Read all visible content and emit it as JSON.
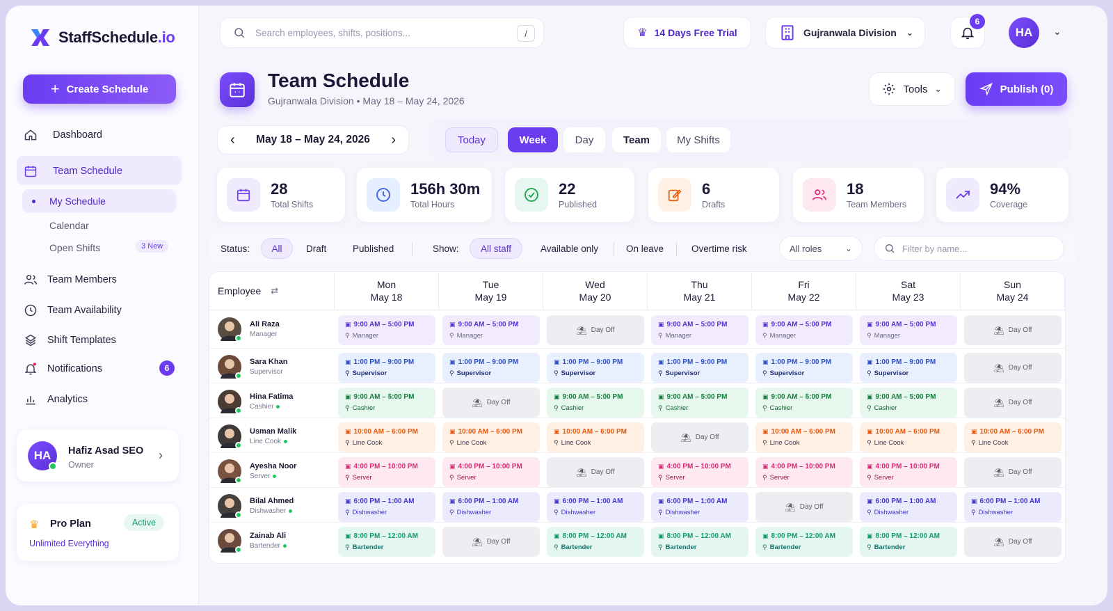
{
  "app": {
    "logo_text": "StaffSchedule",
    "logo_tld": ".io",
    "brand_color": "#6c3cf0"
  },
  "sidebar": {
    "create_label": "Create Schedule",
    "nav": {
      "dashboard": "Dashboard",
      "team_schedule": "Team Schedule",
      "my_schedule": "My Schedule",
      "calendar": "Calendar",
      "open_shifts": "Open Shifts",
      "open_shifts_badge": "3 New",
      "team_members": "Team Members",
      "team_availability": "Team Availability",
      "shift_templates": "Shift Templates",
      "notifications": "Notifications",
      "notifications_count": "6",
      "analytics": "Analytics"
    },
    "user": {
      "initials": "HA",
      "name": "Hafiz Asad SEO",
      "role": "Owner"
    },
    "plan": {
      "name": "Pro Plan",
      "status": "Active",
      "desc": "Unlimited Everything"
    }
  },
  "topbar": {
    "search_placeholder": "Search employees, shifts, positions...",
    "search_shortcut": "/",
    "trial": "14 Days Free Trial",
    "division": "Gujranwala Division",
    "bell_count": "6",
    "avatar_initials": "HA"
  },
  "header": {
    "title": "Team Schedule",
    "subtitle": "Gujranwala Division • May 18 – May 24, 2026",
    "tools": "Tools",
    "publish": "Publish (0)"
  },
  "range": {
    "label": "May 18 – May 24, 2026"
  },
  "views": {
    "today": "Today",
    "week": "Week",
    "day": "Day",
    "team": "Team",
    "my_shifts": "My Shifts"
  },
  "stats": [
    {
      "value": "28",
      "label": "Total Shifts"
    },
    {
      "value": "156h 30m",
      "label": "Total Hours"
    },
    {
      "value": "22",
      "label": "Published"
    },
    {
      "value": "6",
      "label": "Drafts"
    },
    {
      "value": "18",
      "label": "Team Members"
    },
    {
      "value": "94%",
      "label": "Coverage"
    }
  ],
  "filters": {
    "status_label": "Status:",
    "status_all": "All",
    "status_draft": "Draft",
    "status_published": "Published",
    "show_label": "Show:",
    "show_all": "All staff",
    "show_available": "Available only",
    "show_leave": "On leave",
    "show_overtime": "Overtime risk",
    "roles": "All roles",
    "name_placeholder": "Filter by name..."
  },
  "grid": {
    "employee_header": "Employee",
    "days": [
      {
        "day": "Mon",
        "date": "May 18"
      },
      {
        "day": "Tue",
        "date": "May 19"
      },
      {
        "day": "Wed",
        "date": "May 20"
      },
      {
        "day": "Thu",
        "date": "May 21"
      },
      {
        "day": "Fri",
        "date": "May 22"
      },
      {
        "day": "Sat",
        "date": "May 23"
      },
      {
        "day": "Sun",
        "date": "May 24"
      }
    ],
    "day_off_label": "Day Off",
    "employees": [
      {
        "name": "Ali Raza",
        "role": "Manager",
        "time": "9:00 AM – 5:00 PM",
        "color": "manager",
        "off": [
          2,
          6
        ]
      },
      {
        "name": "Sara Khan",
        "role": "Supervisor",
        "time": "1:00 PM – 9:00 PM",
        "color": "supervisor",
        "off": [
          6
        ]
      },
      {
        "name": "Hina Fatima",
        "role": "Cashier",
        "time": "9:00 AM – 5:00 PM",
        "color": "cashier",
        "off": [
          1,
          6
        ]
      },
      {
        "name": "Usman Malik",
        "role": "Line Cook",
        "time": "10:00 AM – 6:00 PM",
        "color": "cook",
        "off": [
          3
        ]
      },
      {
        "name": "Ayesha Noor",
        "role": "Server",
        "time": "4:00 PM – 10:00 PM",
        "color": "server",
        "off": [
          2,
          6
        ]
      },
      {
        "name": "Bilal Ahmed",
        "role": "Dishwasher",
        "time": "6:00 PM – 1:00 AM",
        "color": "dish",
        "off": [
          4
        ]
      },
      {
        "name": "Zainab Ali",
        "role": "Bartender",
        "time": "8:00 PM – 12:00 AM",
        "color": "bar",
        "off": [
          1,
          6
        ]
      }
    ]
  }
}
